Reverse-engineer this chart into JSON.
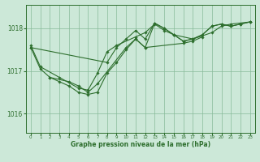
{
  "bg_color": "#cce8d8",
  "grid_color": "#88bb99",
  "line_color": "#2d6e2d",
  "xlabel": "Graphe pression niveau de la mer (hPa)",
  "ylim": [
    1015.55,
    1018.55
  ],
  "xlim": [
    -0.5,
    23.5
  ],
  "yticks": [
    1016,
    1017,
    1018
  ],
  "xticks": [
    0,
    1,
    2,
    3,
    4,
    5,
    6,
    7,
    8,
    9,
    10,
    11,
    12,
    13,
    14,
    15,
    16,
    17,
    18,
    19,
    20,
    21,
    22,
    23
  ],
  "series": [
    [
      1017.6,
      1017.1,
      null,
      1016.85,
      null,
      1016.6,
      1016.55,
      1016.95,
      1017.45,
      1017.6,
      null,
      1017.8,
      1017.9,
      1018.1,
      1017.95,
      1017.85,
      null,
      1017.75,
      null,
      1017.9,
      1018.05,
      1018.1,
      null,
      1018.15
    ],
    [
      null,
      null,
      1016.85,
      null,
      1016.75,
      1016.65,
      1016.5,
      1016.7,
      null,
      null,
      1017.55,
      1017.75,
      1017.55,
      null,
      null,
      null,
      1017.65,
      1017.7,
      1017.8,
      null,
      null,
      null,
      null,
      null
    ],
    [
      1017.55,
      null,
      null,
      null,
      null,
      null,
      null,
      null,
      1017.2,
      1017.55,
      1017.75,
      1017.95,
      1017.75,
      1018.12,
      1018.0,
      1017.85,
      1017.7,
      1017.75,
      1017.85,
      1018.05,
      1018.1,
      1018.05,
      1018.1,
      1018.15
    ],
    [
      1017.55,
      1017.05,
      1016.85,
      1016.75,
      1016.65,
      1016.5,
      1016.45,
      1016.5,
      1016.95,
      1017.2,
      1017.5,
      1017.75,
      1017.55,
      1018.12,
      1018.0,
      1017.85,
      1017.7,
      1017.75,
      1017.85,
      1018.05,
      1018.1,
      1018.05,
      1018.1,
      1018.15
    ]
  ]
}
